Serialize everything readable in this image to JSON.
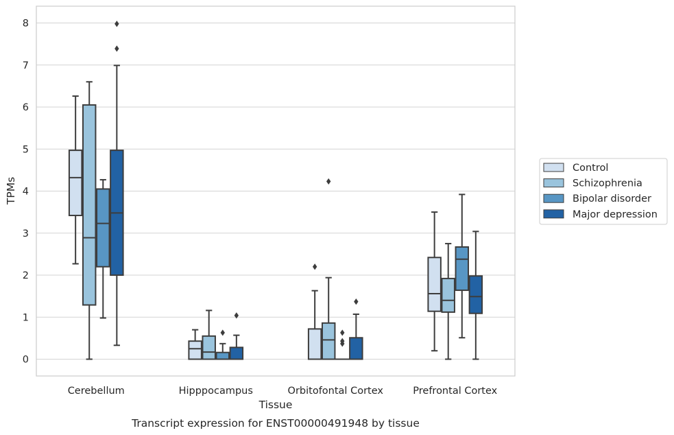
{
  "chart_data": {
    "type": "box",
    "caption": "Transcript expression for ENST00000491948 by tissue",
    "xlabel": "Tissue",
    "ylabel": "TPMs",
    "ylim": [
      -0.4,
      8.4
    ],
    "yticks": [
      0,
      1,
      2,
      3,
      4,
      5,
      6,
      7,
      8
    ],
    "ytick_labels": [
      "0",
      "1",
      "2",
      "3",
      "4",
      "5",
      "6",
      "7",
      "8"
    ],
    "grid": "horizontal",
    "legend_position": "right, outside plot",
    "categories": [
      "Cerebellum",
      "Hipppocampus",
      "Orbitofontal Cortex",
      "Prefrontal Cortex"
    ],
    "series": [
      {
        "name": "Control",
        "color": "#d1e0f0",
        "boxes": [
          {
            "whisker_low": 2.27,
            "q1": 3.42,
            "median": 4.32,
            "q3": 4.97,
            "whisker_high": 6.26,
            "outliers": []
          },
          {
            "whisker_low": 0.0,
            "q1": 0.0,
            "median": 0.25,
            "q3": 0.43,
            "whisker_high": 0.7,
            "outliers": []
          },
          {
            "whisker_low": 0.0,
            "q1": 0.0,
            "median": 0.0,
            "q3": 0.72,
            "whisker_high": 1.63,
            "outliers": [
              2.2
            ]
          },
          {
            "whisker_low": 0.2,
            "q1": 1.14,
            "median": 1.56,
            "q3": 2.42,
            "whisker_high": 3.5,
            "outliers": []
          }
        ]
      },
      {
        "name": "Schizophrenia",
        "color": "#9ac4dd",
        "boxes": [
          {
            "whisker_low": 0.0,
            "q1": 1.29,
            "median": 2.89,
            "q3": 6.05,
            "whisker_high": 6.6,
            "outliers": []
          },
          {
            "whisker_low": 0.0,
            "q1": 0.0,
            "median": 0.17,
            "q3": 0.55,
            "whisker_high": 1.16,
            "outliers": []
          },
          {
            "whisker_low": 0.0,
            "q1": 0.0,
            "median": 0.46,
            "q3": 0.86,
            "whisker_high": 1.94,
            "outliers": [
              4.23
            ]
          },
          {
            "whisker_low": 0.0,
            "q1": 1.12,
            "median": 1.4,
            "q3": 1.92,
            "whisker_high": 2.75,
            "outliers": []
          }
        ]
      },
      {
        "name": "Bipolar disorder",
        "color": "#5896c4",
        "boxes": [
          {
            "whisker_low": 0.98,
            "q1": 2.2,
            "median": 3.23,
            "q3": 4.05,
            "whisker_high": 4.27,
            "outliers": []
          },
          {
            "whisker_low": 0.0,
            "q1": 0.0,
            "median": 0.0,
            "q3": 0.16,
            "whisker_high": 0.37,
            "outliers": [
              0.63
            ]
          },
          {
            "whisker_low": 0.0,
            "q1": 0.0,
            "median": 0.0,
            "q3": 0.0,
            "whisker_high": 0.0,
            "outliers": [
              0.37,
              0.43,
              0.63
            ]
          },
          {
            "whisker_low": 0.51,
            "q1": 1.64,
            "median": 2.38,
            "q3": 2.67,
            "whisker_high": 3.92,
            "outliers": []
          }
        ]
      },
      {
        "name": "Major depression",
        "color": "#2262a4",
        "boxes": [
          {
            "whisker_low": 0.33,
            "q1": 2.0,
            "median": 3.48,
            "q3": 4.97,
            "whisker_high": 6.99,
            "outliers": [
              7.39,
              7.98
            ]
          },
          {
            "whisker_low": 0.0,
            "q1": 0.0,
            "median": 0.0,
            "q3": 0.28,
            "whisker_high": 0.57,
            "outliers": [
              1.04
            ]
          },
          {
            "whisker_low": 0.0,
            "q1": 0.0,
            "median": 0.0,
            "q3": 0.51,
            "whisker_high": 1.07,
            "outliers": [
              1.37
            ]
          },
          {
            "whisker_low": 0.0,
            "q1": 1.09,
            "median": 1.49,
            "q3": 1.98,
            "whisker_high": 3.04,
            "outliers": []
          }
        ]
      }
    ]
  }
}
